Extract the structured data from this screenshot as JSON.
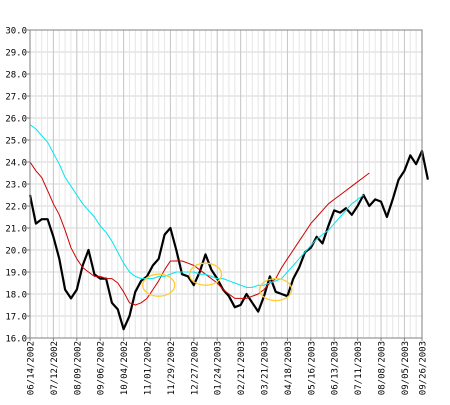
{
  "chart_data": {
    "type": "line",
    "title": "",
    "xlabel": "",
    "ylabel": "",
    "ylim": [
      16.0,
      30.0
    ],
    "y_ticks": [
      "16.0",
      "17.0",
      "18.0",
      "19.0",
      "20.0",
      "21.0",
      "22.0",
      "23.0",
      "24.0",
      "25.0",
      "26.0",
      "27.0",
      "28.0",
      "29.0",
      "30.0"
    ],
    "x_ticks": [
      "06/14/2002",
      "07/12/2002",
      "08/09/2002",
      "09/06/2002",
      "10/04/2002",
      "11/01/2002",
      "11/29/2002",
      "12/27/2002",
      "01/24/2003",
      "02/21/2003",
      "03/21/2003",
      "04/18/2003",
      "05/16/2003",
      "06/13/2003",
      "07/11/2003",
      "08/08/2003",
      "09/05/2003",
      "09/26/2003"
    ],
    "grid": true,
    "legend": "none",
    "series": [
      {
        "color": "#000000",
        "values": [
          22.5,
          21.2,
          21.4,
          21.4,
          20.6,
          19.6,
          18.2,
          17.8,
          18.2,
          19.3,
          20.0,
          18.9,
          18.7,
          18.7,
          17.6,
          17.3,
          16.4,
          17.0,
          18.1,
          18.6,
          18.8,
          19.3,
          19.6,
          20.7,
          21.0,
          20.0,
          18.9,
          18.8,
          18.4,
          19.0,
          19.8,
          19.1,
          18.7,
          18.2,
          17.9,
          17.4,
          17.5,
          18.0,
          17.6,
          17.2,
          17.9,
          18.8,
          18.1,
          18.0,
          17.9,
          18.7,
          19.2,
          19.9,
          20.1,
          20.6,
          20.3,
          21.1,
          21.8,
          21.7,
          21.9,
          21.6,
          22.0,
          22.5,
          22.0,
          22.3,
          22.2,
          21.5,
          22.3,
          23.2,
          23.6,
          24.3,
          23.9,
          24.5,
          23.2
        ],
        "dates_start": "06/14/2002"
      },
      {
        "color": "#cc0000",
        "values": [
          24.0,
          23.6,
          23.3,
          22.7,
          22.1,
          21.6,
          20.9,
          20.1,
          19.6,
          19.2,
          19.0,
          18.8,
          18.8,
          18.7,
          18.7,
          18.5,
          18.1,
          17.6,
          17.5,
          17.6,
          17.8,
          18.2,
          18.6,
          19.1,
          19.5,
          19.5,
          19.5,
          19.4,
          19.3,
          19.1,
          18.9,
          18.7,
          18.5,
          18.2,
          18.0,
          17.8,
          17.8,
          17.8,
          17.9,
          18.0,
          18.2,
          18.5,
          18.7,
          19.2,
          19.6,
          20.0,
          20.4,
          20.8,
          21.2,
          21.5,
          21.8,
          22.1,
          22.3,
          22.5,
          22.7,
          22.9,
          23.1,
          23.3,
          23.5
        ],
        "dates_start": "06/14/2002"
      },
      {
        "color": "#00e5ee",
        "values": [
          25.7,
          25.5,
          25.2,
          24.9,
          24.4,
          23.9,
          23.3,
          22.9,
          22.5,
          22.1,
          21.8,
          21.5,
          21.1,
          20.8,
          20.4,
          19.9,
          19.4,
          19.0,
          18.8,
          18.7,
          18.7,
          18.7,
          18.8,
          18.8,
          18.9,
          19.0,
          19.0,
          19.0,
          19.0,
          18.9,
          18.9,
          18.8,
          18.7,
          18.7,
          18.6,
          18.5,
          18.4,
          18.3,
          18.3,
          18.4,
          18.4,
          18.5,
          18.6,
          18.7,
          19.0,
          19.3,
          19.6,
          19.9,
          20.2,
          20.5,
          20.7,
          20.9,
          21.2,
          21.5,
          21.8,
          22.1,
          22.3,
          22.5
        ],
        "dates_start": "06/14/2002"
      }
    ],
    "annotations": [
      {
        "type": "ellipse",
        "color": "#ffcc33",
        "x_date": "11/15/2002",
        "y": 18.4
      },
      {
        "type": "ellipse",
        "color": "#ffcc33",
        "x_date": "01/10/2003",
        "y": 18.9
      },
      {
        "type": "ellipse",
        "color": "#ffcc33",
        "x_date": "04/04/2003",
        "y": 18.2
      }
    ]
  }
}
